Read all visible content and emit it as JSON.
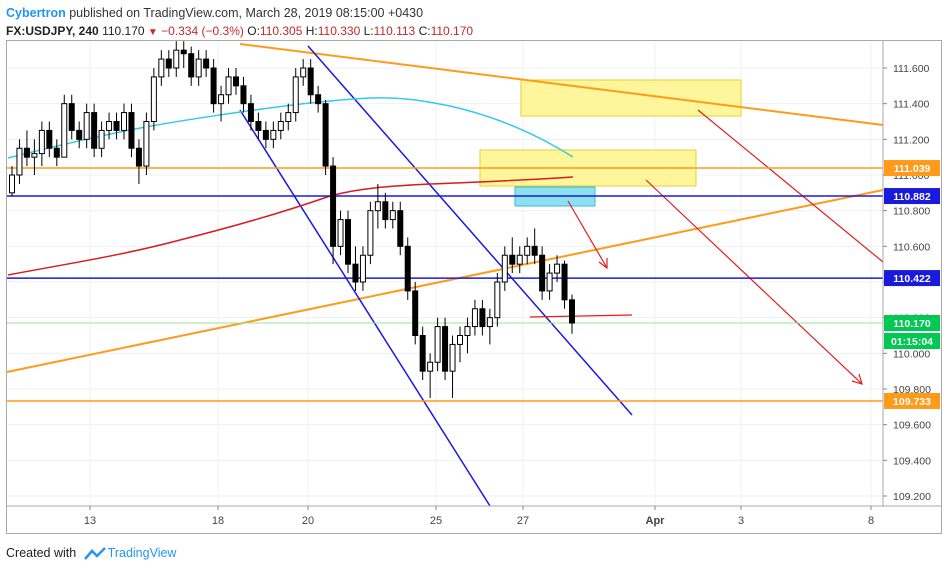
{
  "header": {
    "author": "Cybertron",
    "published_text": "published on TradingView.com, March 28, 2019 08:15:00 +0430",
    "symbol": "FX:USDJPY, 240",
    "last": "110.170",
    "change": "−0.334 (−0.3%)",
    "open_label": "O:",
    "open": "110.305",
    "high_label": "H:",
    "high": "110.330",
    "low_label": "L:",
    "low": "110.113",
    "close_label": "C:",
    "close": "110.170"
  },
  "footer": {
    "created_with": "Created with",
    "brand": "TradingView"
  },
  "colors": {
    "blue_line": "#1a1adb",
    "orange_line": "#ff9a1a",
    "red": "#e01f1f",
    "cyan_ma": "#34cbe6",
    "red_ma": "#d81b1b",
    "yellow_box": "#fff59a",
    "cyan_box": "#8de0ef",
    "price_green": "#00c853"
  },
  "chart_data": {
    "type": "candlestick",
    "title": "",
    "xlabel": "",
    "ylabel": "",
    "ylim": [
      109.1,
      111.75
    ],
    "y_ticks": [
      "111.600",
      "111.400",
      "111.200",
      "111.000",
      "110.800",
      "110.600",
      "110.400",
      "110.200",
      "110.000",
      "109.800",
      "109.600",
      "109.400",
      "109.200"
    ],
    "x_ticks": [
      "13",
      "18",
      "20",
      "25",
      "27",
      "Apr",
      "3",
      "8"
    ],
    "price_labels": [
      {
        "value": "111.039",
        "kind": "orange"
      },
      {
        "value": "110.882",
        "kind": "blue"
      },
      {
        "value": "110.422",
        "kind": "blue"
      },
      {
        "value": "110.170",
        "kind": "green"
      },
      {
        "value": "01:15:04",
        "kind": "green-timer"
      },
      {
        "value": "109.733",
        "kind": "orange"
      }
    ],
    "horizontal_levels": [
      {
        "price": 111.039,
        "color": "orange"
      },
      {
        "price": 110.882,
        "color": "blue"
      },
      {
        "price": 110.422,
        "color": "blue"
      },
      {
        "price": 110.17,
        "color": "green-thin"
      },
      {
        "price": 109.733,
        "color": "orange"
      }
    ],
    "candles": [
      [
        110.9,
        111.05,
        110.88,
        111.0
      ],
      [
        111.0,
        111.2,
        110.95,
        111.15
      ],
      [
        111.15,
        111.25,
        111.05,
        111.1
      ],
      [
        111.1,
        111.2,
        111.0,
        111.12
      ],
      [
        111.12,
        111.3,
        111.05,
        111.25
      ],
      [
        111.25,
        111.3,
        111.1,
        111.15
      ],
      [
        111.15,
        111.2,
        111.05,
        111.1
      ],
      [
        111.1,
        111.45,
        111.1,
        111.4
      ],
      [
        111.4,
        111.45,
        111.2,
        111.25
      ],
      [
        111.25,
        111.3,
        111.15,
        111.2
      ],
      [
        111.2,
        111.4,
        111.15,
        111.35
      ],
      [
        111.35,
        111.4,
        111.1,
        111.15
      ],
      [
        111.15,
        111.3,
        111.1,
        111.25
      ],
      [
        111.25,
        111.35,
        111.2,
        111.3
      ],
      [
        111.3,
        111.35,
        111.2,
        111.25
      ],
      [
        111.25,
        111.4,
        111.2,
        111.35
      ],
      [
        111.35,
        111.4,
        111.1,
        111.15
      ],
      [
        111.15,
        111.2,
        110.95,
        111.05
      ],
      [
        111.05,
        111.35,
        111.0,
        111.3
      ],
      [
        111.3,
        111.6,
        111.25,
        111.55
      ],
      [
        111.55,
        111.7,
        111.5,
        111.65
      ],
      [
        111.65,
        111.7,
        111.55,
        111.6
      ],
      [
        111.6,
        111.75,
        111.55,
        111.7
      ],
      [
        111.7,
        111.75,
        111.6,
        111.68
      ],
      [
        111.68,
        111.72,
        111.5,
        111.55
      ],
      [
        111.55,
        111.7,
        111.5,
        111.65
      ],
      [
        111.65,
        111.7,
        111.55,
        111.6
      ],
      [
        111.6,
        111.65,
        111.35,
        111.4
      ],
      [
        111.4,
        111.5,
        111.3,
        111.45
      ],
      [
        111.45,
        111.6,
        111.4,
        111.55
      ],
      [
        111.55,
        111.6,
        111.45,
        111.5
      ],
      [
        111.5,
        111.55,
        111.35,
        111.4
      ],
      [
        111.4,
        111.45,
        111.25,
        111.3
      ],
      [
        111.3,
        111.35,
        111.2,
        111.25
      ],
      [
        111.25,
        111.3,
        111.15,
        111.2
      ],
      [
        111.2,
        111.3,
        111.15,
        111.25
      ],
      [
        111.25,
        111.35,
        111.2,
        111.3
      ],
      [
        111.3,
        111.4,
        111.25,
        111.35
      ],
      [
        111.35,
        111.6,
        111.3,
        111.55
      ],
      [
        111.55,
        111.65,
        111.5,
        111.6
      ],
      [
        111.6,
        111.65,
        111.4,
        111.45
      ],
      [
        111.45,
        111.5,
        111.35,
        111.4
      ],
      [
        111.4,
        111.42,
        111.0,
        111.05
      ],
      [
        111.05,
        111.1,
        110.5,
        110.6
      ],
      [
        110.6,
        110.8,
        110.55,
        110.75
      ],
      [
        110.75,
        110.8,
        110.45,
        110.5
      ],
      [
        110.5,
        110.6,
        110.35,
        110.4
      ],
      [
        110.4,
        110.6,
        110.35,
        110.55
      ],
      [
        110.55,
        110.85,
        110.5,
        110.8
      ],
      [
        110.8,
        110.95,
        110.7,
        110.85
      ],
      [
        110.85,
        110.9,
        110.7,
        110.75
      ],
      [
        110.75,
        110.85,
        110.7,
        110.8
      ],
      [
        110.8,
        110.85,
        110.55,
        110.6
      ],
      [
        110.6,
        110.65,
        110.3,
        110.35
      ],
      [
        110.35,
        110.4,
        110.05,
        110.1
      ],
      [
        110.1,
        110.15,
        109.85,
        109.9
      ],
      [
        109.9,
        110.0,
        109.75,
        109.95
      ],
      [
        109.95,
        110.2,
        109.9,
        110.15
      ],
      [
        110.15,
        110.2,
        109.85,
        109.9
      ],
      [
        109.9,
        110.1,
        109.75,
        110.05
      ],
      [
        110.05,
        110.15,
        109.95,
        110.1
      ],
      [
        110.1,
        110.2,
        110.0,
        110.15
      ],
      [
        110.15,
        110.3,
        110.1,
        110.25
      ],
      [
        110.25,
        110.3,
        110.1,
        110.15
      ],
      [
        110.15,
        110.25,
        110.05,
        110.2
      ],
      [
        110.2,
        110.45,
        110.15,
        110.4
      ],
      [
        110.4,
        110.6,
        110.35,
        110.55
      ],
      [
        110.55,
        110.65,
        110.45,
        110.5
      ],
      [
        110.5,
        110.6,
        110.45,
        110.55
      ],
      [
        110.55,
        110.65,
        110.5,
        110.6
      ],
      [
        110.6,
        110.7,
        110.5,
        110.55
      ],
      [
        110.55,
        110.6,
        110.3,
        110.35
      ],
      [
        110.35,
        110.5,
        110.3,
        110.45
      ],
      [
        110.45,
        110.55,
        110.4,
        110.5
      ],
      [
        110.5,
        110.52,
        110.25,
        110.3
      ],
      [
        110.3,
        110.33,
        110.11,
        110.17
      ]
    ]
  }
}
